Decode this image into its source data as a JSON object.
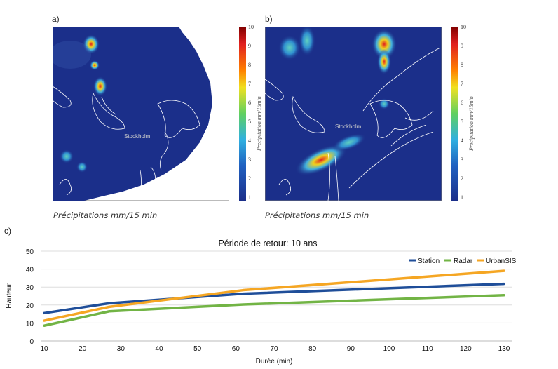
{
  "panels": {
    "a": {
      "label": "a)",
      "caption": "Précipitations mm/15 min",
      "city": "Stockholm"
    },
    "b": {
      "label": "b)",
      "caption": "Précipitations mm/15 min",
      "city": "Stockholm"
    },
    "c": {
      "label": "c)"
    }
  },
  "colorbar": {
    "title": "Precipitation mm/15min",
    "ticks": [
      "10",
      "9",
      "8",
      "7",
      "6",
      "5",
      "4",
      "3",
      "2",
      "1"
    ]
  },
  "chart_data": {
    "type": "line",
    "title": "Période de retour: 10 ans",
    "xlabel": "Durée (min)",
    "ylabel": "Hauteur",
    "xlim": [
      10,
      130
    ],
    "ylim": [
      0,
      50
    ],
    "xticks": [
      10,
      20,
      30,
      40,
      50,
      60,
      70,
      80,
      90,
      100,
      110,
      120,
      130
    ],
    "yticks": [
      0,
      10,
      20,
      30,
      40,
      50
    ],
    "grid": true,
    "legend_position": "top-right",
    "series": [
      {
        "name": "Station",
        "color": "#1f4e99",
        "x": [
          10,
          27,
          62,
          130
        ],
        "y": [
          15.5,
          21,
          26.3,
          31.8
        ]
      },
      {
        "name": "Radar",
        "color": "#72b445",
        "x": [
          10,
          27,
          62,
          130
        ],
        "y": [
          8.5,
          16.5,
          20.3,
          25.5
        ]
      },
      {
        "name": "UrbanSIS",
        "color": "#f5a623",
        "x": [
          10,
          27,
          62,
          130
        ],
        "y": [
          11.3,
          19,
          28.3,
          39
        ]
      }
    ]
  }
}
